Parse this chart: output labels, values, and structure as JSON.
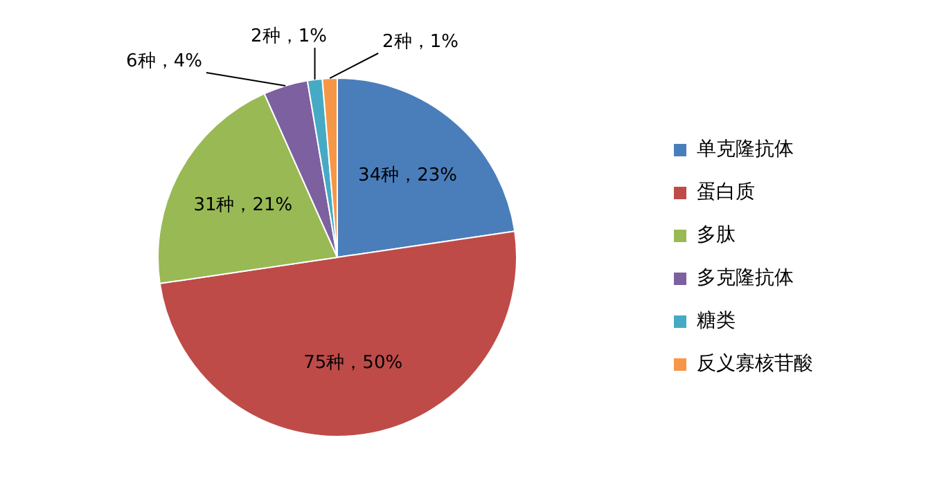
{
  "chart_data": {
    "type": "pie",
    "categories": [
      "单克隆抗体",
      "蛋白质",
      "多肽",
      "多克隆抗体",
      "糖类",
      "反义寡核苷酸"
    ],
    "values": [
      34,
      75,
      31,
      6,
      2,
      2
    ],
    "value_labels": [
      "34种，23%",
      "75种，50%",
      "31种，21%",
      "6种，4%",
      "2种，1%",
      "2种，1%"
    ],
    "colors": [
      "#4a7ebb",
      "#be4b48",
      "#98b954",
      "#7d60a0",
      "#46aac5",
      "#f79646"
    ],
    "legend": "right"
  }
}
